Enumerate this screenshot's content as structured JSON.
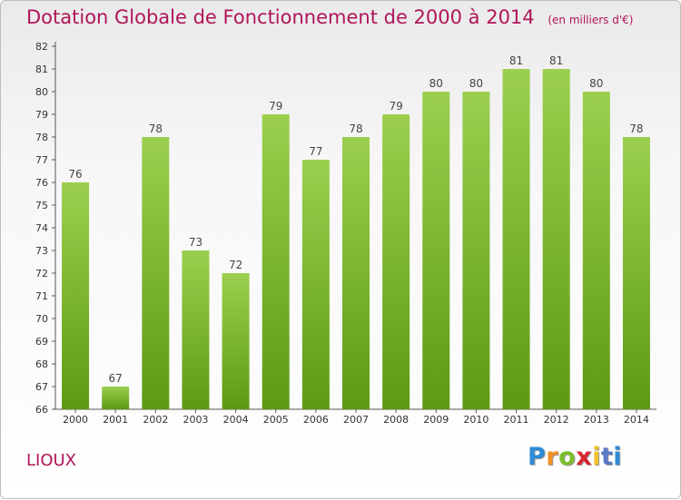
{
  "header": {
    "title": "Dotation Globale de Fonctionnement de 2000 à 2014",
    "subtitle": "(en milliers d'€)"
  },
  "footer": {
    "commune": "LIOUX",
    "logo": [
      "P",
      "r",
      "o",
      "x",
      "i",
      "t",
      "i"
    ]
  },
  "colors": {
    "title": "#b0155a",
    "bar_light": "#9ccf4f",
    "bar_dark": "#5c9a14"
  },
  "chart_data": {
    "type": "bar",
    "title": "Dotation Globale de Fonctionnement de 2000 à 2014",
    "subtitle": "(en milliers d'€)",
    "xlabel": "",
    "ylabel": "",
    "categories": [
      "2000",
      "2001",
      "2002",
      "2003",
      "2004",
      "2005",
      "2006",
      "2007",
      "2008",
      "2009",
      "2010",
      "2011",
      "2012",
      "2013",
      "2014"
    ],
    "values": [
      76,
      67,
      78,
      73,
      72,
      79,
      77,
      78,
      79,
      80,
      80,
      81,
      81,
      80,
      78
    ],
    "ylim": [
      66,
      82
    ],
    "yticks": [
      66,
      67,
      68,
      69,
      70,
      71,
      72,
      73,
      74,
      75,
      76,
      77,
      78,
      79,
      80,
      81,
      82
    ],
    "grid": false,
    "data_labels": true
  }
}
